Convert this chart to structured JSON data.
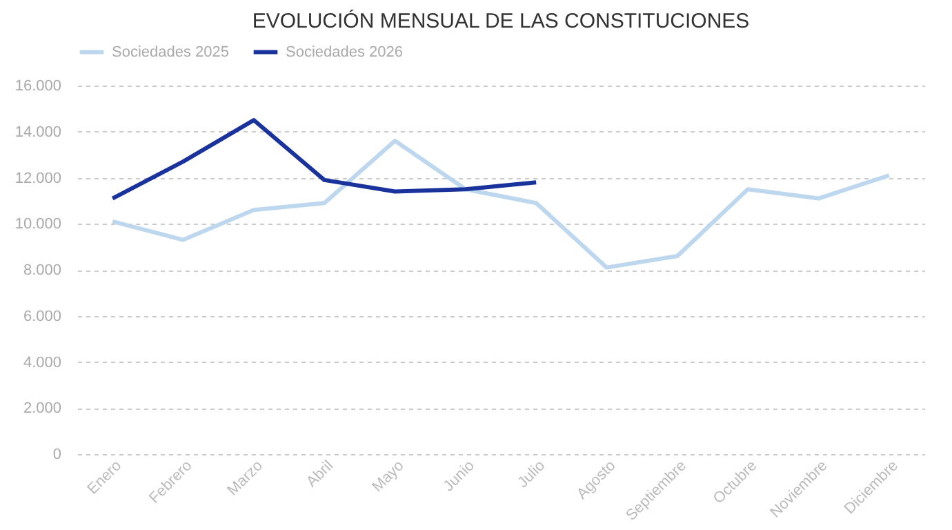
{
  "chart_data": {
    "type": "line",
    "title": "EVOLUCIÓN MENSUAL DE LAS CONSTITUCIONES",
    "categories": [
      "Enero",
      "Febrero",
      "Marzo",
      "Abril",
      "Mayo",
      "Junio",
      "Julio",
      "Agosto",
      "Septiembre",
      "Octubre",
      "Noviembre",
      "Diciembre"
    ],
    "series": [
      {
        "name": "Sociedades 2025",
        "color": "#bdd7ee",
        "values": [
          10100,
          9300,
          10600,
          10900,
          13600,
          11500,
          10900,
          8100,
          8600,
          11500,
          11100,
          12100
        ]
      },
      {
        "name": "Sociedades 2026",
        "color": "#1a339c",
        "values": [
          11100,
          12700,
          14500,
          11900,
          11400,
          11500,
          11800,
          null,
          null,
          null,
          null,
          null
        ]
      }
    ],
    "ylim": [
      0,
      16000
    ],
    "yticks": [
      {
        "value": 0,
        "label": "0"
      },
      {
        "value": 2000,
        "label": "2.000"
      },
      {
        "value": 4000,
        "label": "4.000"
      },
      {
        "value": 6000,
        "label": "6.000"
      },
      {
        "value": 8000,
        "label": "8.000"
      },
      {
        "value": 10000,
        "label": "10.000"
      },
      {
        "value": 12000,
        "label": "12.000"
      },
      {
        "value": 14000,
        "label": "14.000"
      },
      {
        "value": 16000,
        "label": "16.000"
      }
    ],
    "grid": "y",
    "legend": "top",
    "marker": "none",
    "line_style": "solid"
  }
}
